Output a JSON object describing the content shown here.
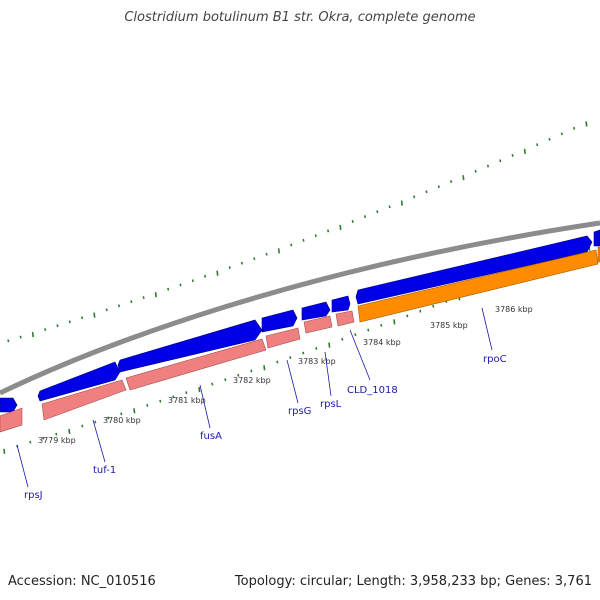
{
  "title": "Clostridium botulinum B1 str. Okra, complete genome",
  "footer": {
    "accession": "Accession: NC_010516",
    "stats": "Topology: circular; Length: 3,958,233 bp; Genes: 3,761"
  },
  "colors": {
    "backbone": "#8c8c8c",
    "cds_forward": "#0000e6",
    "cds_reverse": "#f08080",
    "rrna_feature": "#ff8c00",
    "gc_ticks": "#2e7d2e",
    "label_text": "#1a1aa8"
  },
  "scale_labels": [
    "3779 kbp",
    "3780 kbp",
    "3781 kbp",
    "3782 kbp",
    "3783 kbp",
    "3784 kbp",
    "3785 kbp",
    "3786 kbp"
  ],
  "gene_labels": [
    "rpsJ",
    "tuf-1",
    "fusA",
    "rpsG",
    "rpsL",
    "CLD_1018",
    "rpoC"
  ]
}
